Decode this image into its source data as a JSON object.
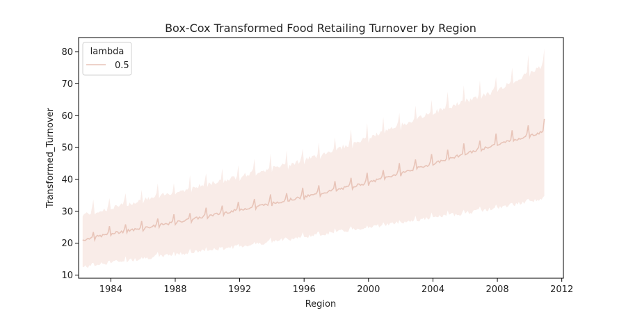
{
  "chart_data": {
    "type": "line",
    "title": "Box-Cox Transformed Food Retailing Turnover by Region",
    "xlabel": "Region",
    "ylabel": "Transformed_Turnover",
    "xlim": [
      1982.0,
      2012.1
    ],
    "ylim": [
      9,
      84.5
    ],
    "x_ticks": [
      1984,
      1988,
      1992,
      1996,
      2000,
      2004,
      2008,
      2012
    ],
    "y_ticks": [
      10,
      20,
      30,
      40,
      50,
      60,
      70,
      80
    ],
    "grid": false,
    "legend": {
      "title": "lambda",
      "placement": "top-left",
      "entries": [
        {
          "label": "0.5",
          "color": "#e8c4b8"
        }
      ]
    },
    "series": [
      {
        "name": "0.5",
        "color": "#e8c4b8",
        "band_color": "#f9ece8",
        "x_start": 1982.25,
        "x_end": 2010.92,
        "mean_anchors": [
          [
            1982.25,
            21
          ],
          [
            1984,
            23
          ],
          [
            1988,
            26.5
          ],
          [
            1992,
            30.5
          ],
          [
            1996,
            34.5
          ],
          [
            2000,
            39
          ],
          [
            2004,
            45
          ],
          [
            2008,
            51
          ],
          [
            2010.92,
            55
          ]
        ],
        "band_low_anchors": [
          [
            1982.25,
            12.5
          ],
          [
            1984,
            14
          ],
          [
            1988,
            16.5
          ],
          [
            1992,
            19
          ],
          [
            1996,
            22
          ],
          [
            2000,
            25
          ],
          [
            2004,
            28
          ],
          [
            2008,
            31
          ],
          [
            2010.92,
            34
          ]
        ],
        "band_high_anchors": [
          [
            1982.25,
            29
          ],
          [
            1984,
            31
          ],
          [
            1988,
            36
          ],
          [
            1992,
            41
          ],
          [
            1996,
            46
          ],
          [
            2000,
            53
          ],
          [
            2004,
            61
          ],
          [
            2008,
            68
          ],
          [
            2010.92,
            76
          ]
        ],
        "december_peak_offset": 2.5,
        "final_value": 59
      }
    ]
  }
}
